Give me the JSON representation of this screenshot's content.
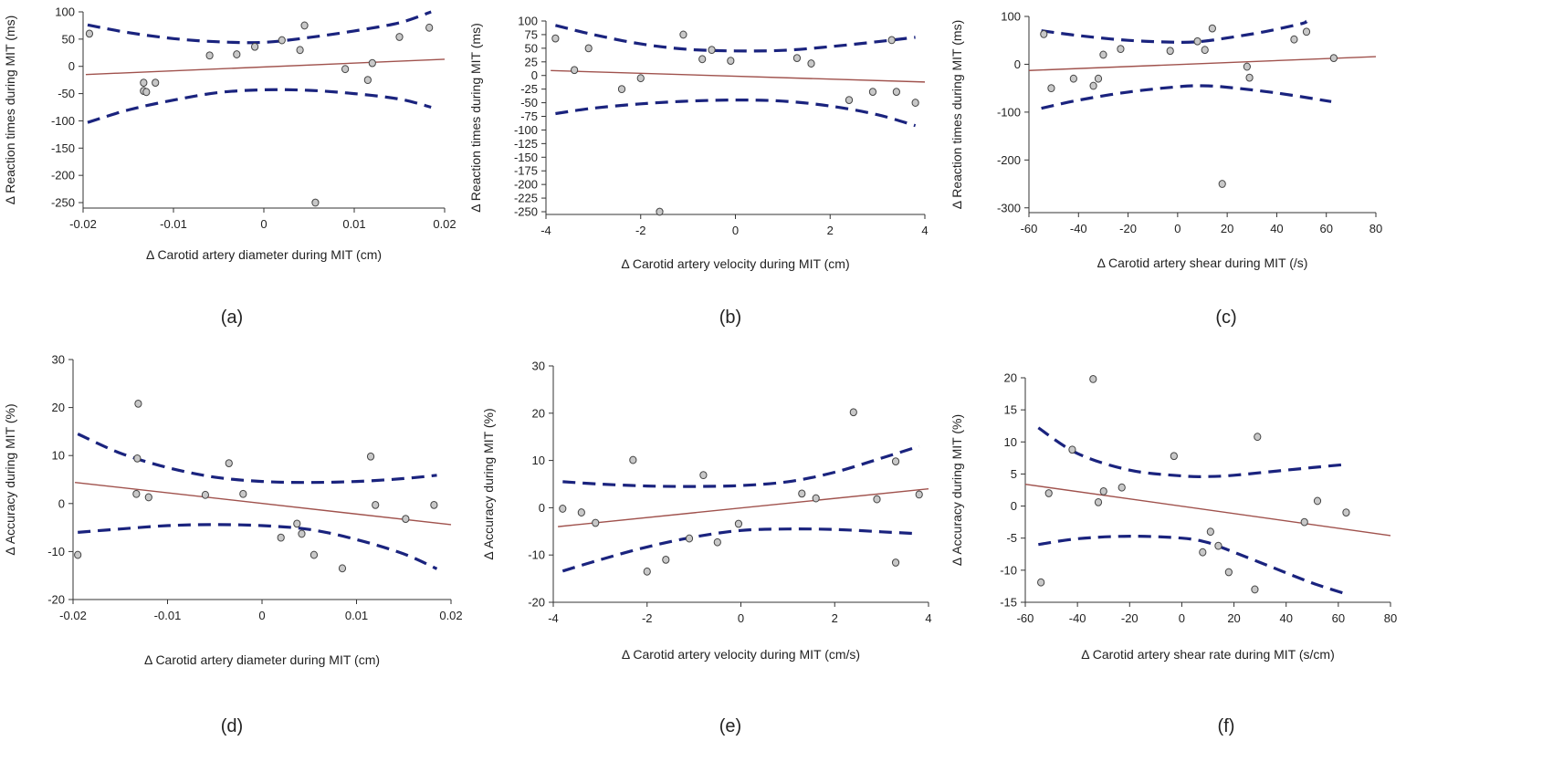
{
  "style": {
    "point_fill": "#c8c8c8",
    "fit_color": "#a0524d",
    "ci_color": "#1a237e"
  },
  "chart_data": [
    {
      "caption": "(a)",
      "type": "scatter",
      "xlabel": "Δ Carotid artery diameter during MIT (cm)",
      "ylabel": "Δ Reaction times during MIT (ms)",
      "xlim": [
        -0.02,
        0.02
      ],
      "ylim": [
        -260,
        100
      ],
      "xticks": [
        -0.02,
        -0.01,
        0,
        0.01,
        0.02
      ],
      "xtick_labels": [
        "-0.02",
        "-0.01",
        "0",
        "0.01",
        "0.02"
      ],
      "yticks": [
        100,
        50,
        0,
        -50,
        -100,
        -150,
        -200,
        -250
      ],
      "ytick_labels": [
        "100",
        "50",
        "0",
        "-50",
        "-100",
        "-150",
        "-200",
        "-250"
      ],
      "points": [
        [
          -0.0193,
          60
        ],
        [
          -0.0133,
          -30
        ],
        [
          -0.0133,
          -45
        ],
        [
          -0.013,
          -47
        ],
        [
          -0.012,
          -30
        ],
        [
          -0.006,
          20
        ],
        [
          -0.003,
          22
        ],
        [
          -0.001,
          36
        ],
        [
          0.002,
          48
        ],
        [
          0.004,
          30
        ],
        [
          0.0045,
          75
        ],
        [
          0.0057,
          -250
        ],
        [
          0.009,
          -5
        ],
        [
          0.0115,
          -25
        ],
        [
          0.012,
          6
        ],
        [
          0.015,
          54
        ],
        [
          0.0183,
          71
        ]
      ],
      "fit": [
        [
          -0.0197,
          -15
        ],
        [
          0.02,
          13
        ]
      ],
      "ci_upper": [
        [
          -0.0195,
          76
        ],
        [
          -0.015,
          62
        ],
        [
          -0.01,
          51
        ],
        [
          -0.005,
          45
        ],
        [
          0,
          44
        ],
        [
          0.005,
          53
        ],
        [
          0.01,
          65
        ],
        [
          0.015,
          80
        ],
        [
          0.0185,
          100
        ]
      ],
      "ci_lower": [
        [
          -0.0195,
          -103
        ],
        [
          -0.015,
          -80
        ],
        [
          -0.01,
          -62
        ],
        [
          -0.005,
          -48
        ],
        [
          0,
          -43
        ],
        [
          0.005,
          -44
        ],
        [
          0.01,
          -50
        ],
        [
          0.015,
          -60
        ],
        [
          0.0185,
          -75
        ]
      ]
    },
    {
      "caption": "(b)",
      "type": "scatter",
      "xlabel": "Δ Carotid artery velocity during MIT (cm)",
      "ylabel": "Δ Reaction times during MIT (ms)",
      "xlim": [
        -4,
        4
      ],
      "ylim": [
        -255,
        100
      ],
      "xticks": [
        -4,
        -2,
        0,
        2,
        4
      ],
      "xtick_labels": [
        "-4",
        "-2",
        "0",
        "2",
        "4"
      ],
      "yticks": [
        100,
        75,
        50,
        25,
        0,
        -25,
        -50,
        -75,
        -100,
        -125,
        -150,
        -175,
        -200,
        -225,
        -250
      ],
      "ytick_labels": [
        "100",
        "75",
        "50",
        "25",
        "0",
        "-25",
        "-50",
        "-75",
        "-100",
        "-125",
        "-150",
        "-175",
        "-200",
        "-225",
        "-250"
      ],
      "points": [
        [
          -3.8,
          68
        ],
        [
          -3.4,
          10
        ],
        [
          -3.1,
          50
        ],
        [
          -2.4,
          -25
        ],
        [
          -2,
          -5
        ],
        [
          -1.6,
          -250
        ],
        [
          -1.1,
          75
        ],
        [
          -0.7,
          30
        ],
        [
          -0.5,
          47
        ],
        [
          -0.1,
          27
        ],
        [
          1.3,
          32
        ],
        [
          1.6,
          22
        ],
        [
          2.4,
          -45
        ],
        [
          2.9,
          -30
        ],
        [
          3.3,
          65
        ],
        [
          3.4,
          -30
        ],
        [
          3.8,
          -50
        ]
      ],
      "fit": [
        [
          -3.9,
          9
        ],
        [
          4,
          -12
        ]
      ],
      "ci_upper": [
        [
          -3.8,
          92
        ],
        [
          -3,
          75
        ],
        [
          -2,
          58
        ],
        [
          -1,
          48
        ],
        [
          0,
          45
        ],
        [
          1,
          46
        ],
        [
          2,
          53
        ],
        [
          3,
          62
        ],
        [
          3.8,
          70
        ]
      ],
      "ci_lower": [
        [
          -3.8,
          -70
        ],
        [
          -3,
          -60
        ],
        [
          -2,
          -52
        ],
        [
          -1,
          -47
        ],
        [
          0,
          -45
        ],
        [
          1,
          -47
        ],
        [
          2,
          -56
        ],
        [
          3,
          -72
        ],
        [
          3.8,
          -92
        ]
      ]
    },
    {
      "caption": "(c)",
      "type": "scatter",
      "xlabel": "Δ Carotid artery shear during MIT (/s)",
      "ylabel": "Δ Reaction times during MIT (ms)",
      "xlim": [
        -60,
        80
      ],
      "ylim": [
        -310,
        100
      ],
      "xticks": [
        -60,
        -40,
        -20,
        0,
        20,
        40,
        60,
        80
      ],
      "xtick_labels": [
        "-60",
        "-40",
        "-20",
        "0",
        "20",
        "40",
        "60",
        "80"
      ],
      "yticks": [
        100,
        0,
        -100,
        -200,
        -300
      ],
      "ytick_labels": [
        "100",
        "0",
        "-100",
        "-200",
        "-300"
      ],
      "points": [
        [
          -54,
          63
        ],
        [
          -51,
          -50
        ],
        [
          -42,
          -30
        ],
        [
          -34,
          -45
        ],
        [
          -32,
          -30
        ],
        [
          -30,
          20
        ],
        [
          -23,
          32
        ],
        [
          -3,
          28
        ],
        [
          8,
          48
        ],
        [
          11,
          30
        ],
        [
          14,
          75
        ],
        [
          18,
          -250
        ],
        [
          28,
          -5
        ],
        [
          29,
          -28
        ],
        [
          47,
          52
        ],
        [
          52,
          68
        ],
        [
          63,
          13
        ]
      ],
      "fit": [
        [
          -60,
          -13
        ],
        [
          80,
          16
        ]
      ],
      "ci_upper": [
        [
          -55,
          70
        ],
        [
          -40,
          60
        ],
        [
          -20,
          50
        ],
        [
          0,
          46
        ],
        [
          10,
          48
        ],
        [
          20,
          55
        ],
        [
          35,
          68
        ],
        [
          50,
          85
        ],
        [
          52,
          90
        ]
      ],
      "ci_lower": [
        [
          -55,
          -92
        ],
        [
          -40,
          -75
        ],
        [
          -20,
          -58
        ],
        [
          0,
          -47
        ],
        [
          10,
          -45
        ],
        [
          20,
          -48
        ],
        [
          40,
          -60
        ],
        [
          62,
          -78
        ]
      ]
    },
    {
      "caption": "(d)",
      "type": "scatter",
      "xlabel": "Δ Carotid artery diameter during MIT (cm)",
      "ylabel": "Δ Accuracy during MIT (%)",
      "xlim": [
        -0.02,
        0.02
      ],
      "ylim": [
        -20,
        30
      ],
      "xticks": [
        -0.02,
        -0.01,
        0,
        0.01,
        0.02
      ],
      "xtick_labels": [
        "-0.02",
        "-0.01",
        "0",
        "0.01",
        "0.02"
      ],
      "yticks": [
        30,
        20,
        10,
        0,
        -10,
        -20
      ],
      "ytick_labels": [
        "30",
        "20",
        "10",
        "0",
        "-10",
        "-20"
      ],
      "points": [
        [
          -0.0195,
          -10.7
        ],
        [
          -0.0131,
          20.8
        ],
        [
          -0.0132,
          9.4
        ],
        [
          -0.0133,
          2
        ],
        [
          -0.012,
          1.3
        ],
        [
          -0.006,
          1.8
        ],
        [
          -0.0035,
          8.4
        ],
        [
          -0.002,
          2
        ],
        [
          0.002,
          -7.1
        ],
        [
          0.0037,
          -4.2
        ],
        [
          0.0042,
          -6.3
        ],
        [
          0.0055,
          -10.7
        ],
        [
          0.0085,
          -13.5
        ],
        [
          0.0115,
          9.8
        ],
        [
          0.012,
          -0.3
        ],
        [
          0.0152,
          -3.2
        ],
        [
          0.0182,
          -0.3
        ]
      ],
      "fit": [
        [
          -0.0198,
          4.4
        ],
        [
          0.02,
          -4.4
        ]
      ],
      "ci_upper": [
        [
          -0.0195,
          14.5
        ],
        [
          -0.015,
          10.5
        ],
        [
          -0.01,
          7.5
        ],
        [
          -0.005,
          5.5
        ],
        [
          0,
          4.6
        ],
        [
          0.005,
          4.4
        ],
        [
          0.01,
          4.6
        ],
        [
          0.015,
          5.2
        ],
        [
          0.0185,
          5.9
        ]
      ],
      "ci_lower": [
        [
          -0.0195,
          -6
        ],
        [
          -0.015,
          -5.3
        ],
        [
          -0.01,
          -4.6
        ],
        [
          -0.005,
          -4.4
        ],
        [
          0,
          -4.6
        ],
        [
          0.005,
          -5.4
        ],
        [
          0.01,
          -7.5
        ],
        [
          0.015,
          -10.5
        ],
        [
          0.0185,
          -13.6
        ]
      ]
    },
    {
      "caption": "(e)",
      "type": "scatter",
      "xlabel": "Δ Carotid artery velocity during MIT (cm/s)",
      "ylabel": "Δ Accuracy during MIT (%)",
      "xlim": [
        -4,
        4
      ],
      "ylim": [
        -20,
        30
      ],
      "xticks": [
        -4,
        -2,
        0,
        2,
        4
      ],
      "xtick_labels": [
        "-4",
        "-2",
        "0",
        "2",
        "4"
      ],
      "yticks": [
        30,
        20,
        10,
        0,
        -10,
        -20
      ],
      "ytick_labels": [
        "30",
        "20",
        "10",
        "0",
        "-10",
        "-20"
      ],
      "points": [
        [
          -3.8,
          -0.2
        ],
        [
          -3.4,
          -1
        ],
        [
          -3.1,
          -3.2
        ],
        [
          -2.3,
          10.1
        ],
        [
          -2,
          -13.5
        ],
        [
          -1.6,
          -11
        ],
        [
          -1.1,
          -6.5
        ],
        [
          -0.8,
          6.9
        ],
        [
          -0.5,
          -7.3
        ],
        [
          -0.05,
          -3.4
        ],
        [
          1.3,
          3
        ],
        [
          1.6,
          2
        ],
        [
          2.4,
          20.2
        ],
        [
          2.9,
          1.8
        ],
        [
          3.3,
          9.8
        ],
        [
          3.3,
          -11.6
        ],
        [
          3.8,
          2.8
        ]
      ],
      "fit": [
        [
          -3.9,
          -4
        ],
        [
          4,
          4
        ]
      ],
      "ci_upper": [
        [
          -3.8,
          5.5
        ],
        [
          -3,
          5
        ],
        [
          -2,
          4.6
        ],
        [
          -1,
          4.5
        ],
        [
          0,
          4.7
        ],
        [
          1,
          5.5
        ],
        [
          2,
          7.5
        ],
        [
          3,
          10.5
        ],
        [
          3.8,
          13
        ]
      ],
      "ci_lower": [
        [
          -3.8,
          -13.4
        ],
        [
          -3,
          -11
        ],
        [
          -2,
          -8.3
        ],
        [
          -1,
          -6.2
        ],
        [
          0,
          -4.8
        ],
        [
          1,
          -4.5
        ],
        [
          2,
          -4.6
        ],
        [
          3,
          -5.1
        ],
        [
          3.8,
          -5.5
        ]
      ]
    },
    {
      "caption": "(f)",
      "type": "scatter",
      "xlabel": "Δ Carotid artery shear rate during MIT (s/cm)",
      "ylabel": "Δ Accuracy during MIT (%)",
      "xlim": [
        -60,
        80
      ],
      "ylim": [
        -15,
        20
      ],
      "xticks": [
        -60,
        -40,
        -20,
        0,
        20,
        40,
        60,
        80
      ],
      "xtick_labels": [
        "-60",
        "-40",
        "-20",
        "0",
        "20",
        "40",
        "60",
        "80"
      ],
      "yticks": [
        20,
        15,
        10,
        5,
        0,
        -5,
        -10,
        -15
      ],
      "ytick_labels": [
        "20",
        "15",
        "10",
        "5",
        "0",
        "-5",
        "-10",
        "-15"
      ],
      "points": [
        [
          -54,
          -11.9
        ],
        [
          -51,
          2
        ],
        [
          -42,
          8.8
        ],
        [
          -34,
          19.8
        ],
        [
          -32,
          0.6
        ],
        [
          -30,
          2.3
        ],
        [
          -23,
          2.9
        ],
        [
          -3,
          7.8
        ],
        [
          8,
          -7.2
        ],
        [
          11,
          -4
        ],
        [
          14,
          -6.2
        ],
        [
          18,
          -10.3
        ],
        [
          28,
          -13
        ],
        [
          29,
          10.8
        ],
        [
          47,
          -2.5
        ],
        [
          52,
          0.8
        ],
        [
          63,
          -1
        ]
      ],
      "fit": [
        [
          -60,
          3.4
        ],
        [
          80,
          -4.6
        ]
      ],
      "ci_upper": [
        [
          -55,
          12.2
        ],
        [
          -40,
          8.2
        ],
        [
          -20,
          5.6
        ],
        [
          0,
          4.7
        ],
        [
          10,
          4.6
        ],
        [
          20,
          4.8
        ],
        [
          35,
          5.4
        ],
        [
          50,
          6
        ],
        [
          63,
          6.5
        ]
      ],
      "ci_lower": [
        [
          -55,
          -6
        ],
        [
          -40,
          -5.1
        ],
        [
          -20,
          -4.7
        ],
        [
          0,
          -5
        ],
        [
          10,
          -5.7
        ],
        [
          20,
          -7.2
        ],
        [
          35,
          -9.6
        ],
        [
          50,
          -12
        ],
        [
          63,
          -13.7
        ]
      ]
    }
  ]
}
